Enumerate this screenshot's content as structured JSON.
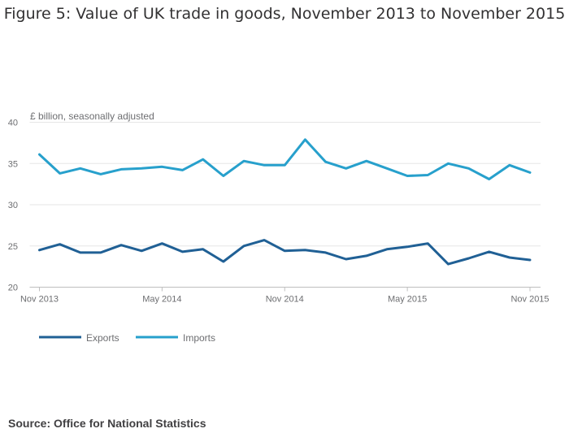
{
  "page": {
    "title": "Figure 5: Value of UK trade in goods, November 2013 to November 2015",
    "source": "Source: Office for National Statistics"
  },
  "colors": {
    "exports": "#206095",
    "imports": "#27a0cc",
    "grid": "#e6e6e6",
    "axis": "#bfbfbf"
  },
  "chart_data": {
    "type": "line",
    "title": "Figure 5: Value of UK trade in goods, November 2013 to November 2015",
    "ylabel": "£ billion, seasonally adjusted",
    "xlabel": "",
    "ylim": [
      20,
      40
    ],
    "yticks": [
      20,
      25,
      30,
      35,
      40
    ],
    "x": [
      "Nov 2013",
      "Dec 2013",
      "Jan 2014",
      "Feb 2014",
      "Mar 2014",
      "Apr 2014",
      "May 2014",
      "Jun 2014",
      "Jul 2014",
      "Aug 2014",
      "Sep 2014",
      "Oct 2014",
      "Nov 2014",
      "Dec 2014",
      "Jan 2015",
      "Feb 2015",
      "Mar 2015",
      "Apr 2015",
      "May 2015",
      "Jun 2015",
      "Jul 2015",
      "Aug 2015",
      "Sep 2015",
      "Oct 2015",
      "Nov 2015"
    ],
    "xtick_labels": [
      "Nov 2013",
      "May 2014",
      "Nov 2014",
      "May 2015",
      "Nov 2015"
    ],
    "grid": true,
    "legend_position": "bottom-left",
    "series": [
      {
        "name": "Exports",
        "values": [
          24.5,
          25.2,
          24.2,
          24.2,
          25.1,
          24.4,
          25.3,
          24.3,
          24.6,
          23.1,
          25.0,
          25.7,
          24.4,
          24.5,
          24.2,
          23.4,
          23.8,
          24.6,
          24.9,
          25.3,
          22.8,
          23.5,
          24.3,
          23.6,
          23.3
        ]
      },
      {
        "name": "Imports",
        "values": [
          36.1,
          33.8,
          34.4,
          33.7,
          34.3,
          34.4,
          34.6,
          34.2,
          35.5,
          33.5,
          35.3,
          34.8,
          34.8,
          37.9,
          35.2,
          34.4,
          35.3,
          34.4,
          33.5,
          33.6,
          35.0,
          34.4,
          33.1,
          34.8,
          33.9
        ]
      }
    ]
  }
}
